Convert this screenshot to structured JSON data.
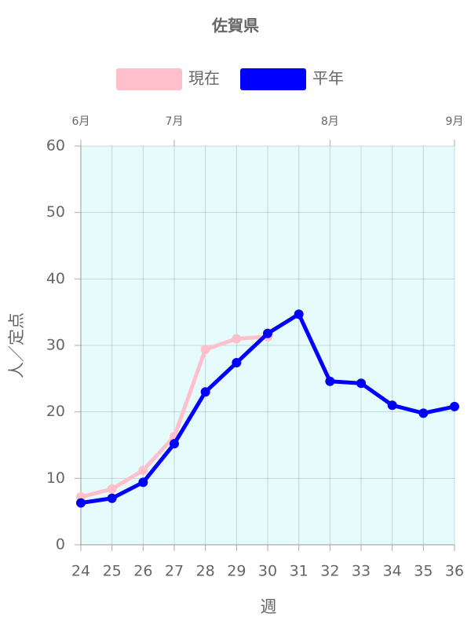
{
  "chart_data": {
    "type": "line",
    "title": "佐賀県",
    "x": [
      24,
      25,
      26,
      27,
      28,
      29,
      30,
      31,
      32,
      33,
      34,
      35,
      36
    ],
    "xlim": [
      24,
      36
    ],
    "xticks": [
      24,
      25,
      26,
      27,
      28,
      29,
      30,
      31,
      32,
      33,
      34,
      35,
      36
    ],
    "x2ticks": [
      {
        "value": 24,
        "label": "6月"
      },
      {
        "value": 27,
        "label": "7月"
      },
      {
        "value": 32,
        "label": "8月"
      },
      {
        "value": 36,
        "label": "9月"
      }
    ],
    "ylim": [
      0,
      60
    ],
    "yticks": [
      0,
      10,
      20,
      30,
      40,
      50,
      60
    ],
    "xlabel": "週",
    "ylabel": "人／定点",
    "grid": true,
    "background": "#e6fcfc",
    "series": [
      {
        "name": "現在",
        "color": "#ffc0cb",
        "values": [
          7.2,
          8.4,
          11.2,
          16.3,
          29.4,
          31.0,
          31.3,
          null,
          null,
          null,
          null,
          null,
          null
        ]
      },
      {
        "name": "平年",
        "color": "#0000ff",
        "values": [
          6.3,
          7.0,
          9.4,
          15.2,
          23.0,
          27.4,
          31.8,
          34.7,
          24.6,
          24.3,
          21.0,
          19.8,
          20.8
        ]
      }
    ]
  }
}
